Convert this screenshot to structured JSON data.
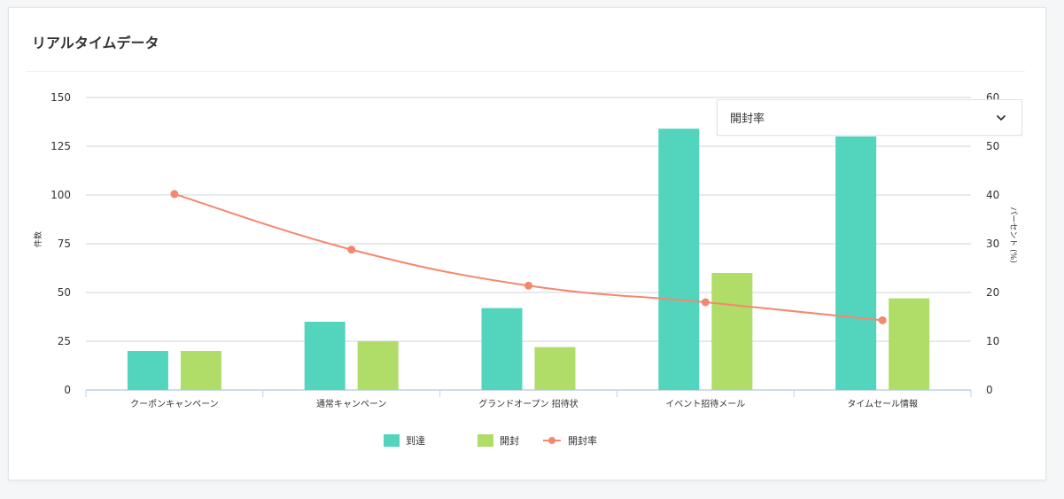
{
  "card": {
    "title": "リアルタイムデータ"
  },
  "series_select": {
    "selected": "開封率",
    "icon": "chevron-down-icon"
  },
  "colors": {
    "arrived": "#52d4bd",
    "opened": "#b0dc68",
    "open_rate": "#f5876e",
    "grid": "#cfd4d9",
    "axis": "#bcd3e6"
  },
  "chart_data": {
    "type": "bar",
    "title": "",
    "categories": [
      "クーポンキャンペーン",
      "通常キャンペーン",
      "グランドオープン 招待状",
      "イベント招待メール",
      "タイムセール情報"
    ],
    "series": [
      {
        "name": "到達",
        "type": "bar",
        "axis": "left",
        "values": [
          20,
          35,
          42,
          134,
          130
        ]
      },
      {
        "name": "開封",
        "type": "bar",
        "axis": "left",
        "values": [
          20,
          25,
          22,
          60,
          47
        ]
      },
      {
        "name": "開封率",
        "type": "line",
        "axis": "right",
        "values": [
          40.2,
          28.8,
          21.4,
          18.0,
          14.3
        ]
      }
    ],
    "ylabel": "件数",
    "y2label": "パーセント (%)",
    "ylim": [
      0,
      150
    ],
    "y2lim": [
      0,
      60
    ],
    "yticks": [
      0,
      25,
      50,
      75,
      100,
      125,
      150
    ],
    "y2ticks": [
      0,
      10,
      20,
      30,
      40,
      50,
      60
    ],
    "grid": true,
    "legend_position": "bottom"
  }
}
